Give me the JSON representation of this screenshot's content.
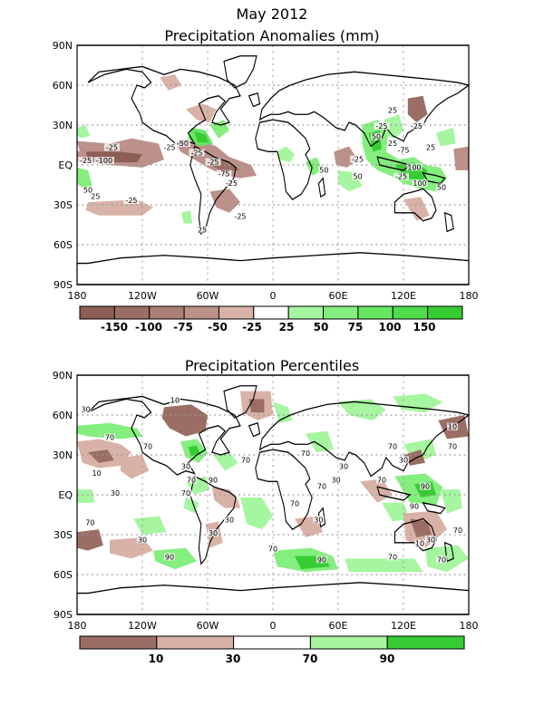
{
  "header": {
    "title": "May 2012"
  },
  "map_top": {
    "title": "Precipitation Anomalies (mm)",
    "lat_labels": [
      "90N",
      "60N",
      "30N",
      "EQ",
      "30S",
      "60S",
      "90S"
    ],
    "lon_labels": [
      "180",
      "120W",
      "60W",
      "0",
      "60E",
      "120E",
      "180"
    ],
    "colorbar": {
      "labels": [
        "-150",
        "-100",
        "-75",
        "-50",
        "-25",
        "25",
        "50",
        "75",
        "100",
        "150"
      ],
      "colors": [
        "#8c5e55",
        "#9b6e65",
        "#ab7f76",
        "#bb918a",
        "#d9b2a7",
        "#ffffff",
        "#a6f5a0",
        "#84ee7e",
        "#67e662",
        "#4edc4a",
        "#36cc33"
      ]
    },
    "contour_labels": [
      {
        "t": "-25",
        "lon": -148,
        "lat": 12
      },
      {
        "t": "-25",
        "lon": -172,
        "lat": 2
      },
      {
        "t": "-100",
        "lon": -155,
        "lat": 2
      },
      {
        "t": "-25",
        "lon": -95,
        "lat": 12
      },
      {
        "t": "-50",
        "lon": -83,
        "lat": 15
      },
      {
        "t": "-25",
        "lon": -70,
        "lat": 8
      },
      {
        "t": "-25",
        "lon": -55,
        "lat": 1
      },
      {
        "t": "-75",
        "lon": -45,
        "lat": -8
      },
      {
        "t": "-25",
        "lon": -38,
        "lat": -15
      },
      {
        "t": "50",
        "lon": -170,
        "lat": -20
      },
      {
        "t": "25",
        "lon": -163,
        "lat": -25
      },
      {
        "t": "-25",
        "lon": -130,
        "lat": -28
      },
      {
        "t": "-25",
        "lon": -30,
        "lat": -40
      },
      {
        "t": "25",
        "lon": -65,
        "lat": -50
      },
      {
        "t": "50",
        "lon": 95,
        "lat": 20
      },
      {
        "t": "-25",
        "lon": 100,
        "lat": 28
      },
      {
        "t": "25",
        "lon": 110,
        "lat": 15
      },
      {
        "t": "-75",
        "lon": 120,
        "lat": 10
      },
      {
        "t": "-25",
        "lon": 132,
        "lat": 28
      },
      {
        "t": "25",
        "lon": 145,
        "lat": 12
      },
      {
        "t": "-25",
        "lon": 118,
        "lat": -10
      },
      {
        "t": "-25",
        "lon": 78,
        "lat": 3
      },
      {
        "t": "100",
        "lon": 130,
        "lat": -3
      },
      {
        "t": "100",
        "lon": 135,
        "lat": -15
      },
      {
        "t": "50",
        "lon": 155,
        "lat": -18
      },
      {
        "t": "50",
        "lon": 78,
        "lat": -10
      },
      {
        "t": "25",
        "lon": 110,
        "lat": 40
      },
      {
        "t": "50",
        "lon": 47,
        "lat": -5
      }
    ]
  },
  "map_bottom": {
    "title": "Precipitation Percentiles",
    "lat_labels": [
      "90N",
      "60N",
      "30N",
      "EQ",
      "30S",
      "60S",
      "90S"
    ],
    "lon_labels": [
      "180",
      "120W",
      "60W",
      "0",
      "60E",
      "120E",
      "180"
    ],
    "colorbar": {
      "labels": [
        "10",
        "30",
        "70",
        "90"
      ],
      "colors": [
        "#9b6e65",
        "#d9b2a7",
        "#ffffff",
        "#a6f5a0",
        "#36cc33"
      ]
    },
    "contour_labels": [
      {
        "t": "30",
        "lon": -172,
        "lat": 63
      },
      {
        "t": "10",
        "lon": -90,
        "lat": 70
      },
      {
        "t": "70",
        "lon": -150,
        "lat": 42
      },
      {
        "t": "10",
        "lon": -162,
        "lat": 15
      },
      {
        "t": "30",
        "lon": -145,
        "lat": 0
      },
      {
        "t": "70",
        "lon": -115,
        "lat": 35
      },
      {
        "t": "30",
        "lon": -80,
        "lat": 20
      },
      {
        "t": "70",
        "lon": -75,
        "lat": 10
      },
      {
        "t": "90",
        "lon": -55,
        "lat": 10
      },
      {
        "t": "70",
        "lon": -80,
        "lat": 0
      },
      {
        "t": "70",
        "lon": -25,
        "lat": 25
      },
      {
        "t": "70",
        "lon": 30,
        "lat": 30
      },
      {
        "t": "30",
        "lon": 58,
        "lat": 10
      },
      {
        "t": "70",
        "lon": 45,
        "lat": 5
      },
      {
        "t": "30",
        "lon": 65,
        "lat": 20
      },
      {
        "t": "70",
        "lon": 100,
        "lat": 10
      },
      {
        "t": "90",
        "lon": 140,
        "lat": 5
      },
      {
        "t": "30",
        "lon": 120,
        "lat": 25
      },
      {
        "t": "70",
        "lon": 110,
        "lat": 35
      },
      {
        "t": "10",
        "lon": 165,
        "lat": 50
      },
      {
        "t": "70",
        "lon": 165,
        "lat": 35
      },
      {
        "t": "70",
        "lon": 20,
        "lat": -8
      },
      {
        "t": "30",
        "lon": 42,
        "lat": -20
      },
      {
        "t": "30",
        "lon": -40,
        "lat": -20
      },
      {
        "t": "70",
        "lon": -168,
        "lat": -22
      },
      {
        "t": "30",
        "lon": -120,
        "lat": -35
      },
      {
        "t": "90",
        "lon": -95,
        "lat": -48
      },
      {
        "t": "70",
        "lon": 0,
        "lat": -42
      },
      {
        "t": "90",
        "lon": 45,
        "lat": -50
      },
      {
        "t": "70",
        "lon": 110,
        "lat": -48
      },
      {
        "t": "10",
        "lon": 135,
        "lat": -38
      },
      {
        "t": "30",
        "lon": 145,
        "lat": -35
      },
      {
        "t": "70",
        "lon": 155,
        "lat": -50
      },
      {
        "t": "90",
        "lon": 130,
        "lat": -10
      },
      {
        "t": "70",
        "lon": 170,
        "lat": -28
      },
      {
        "t": "30",
        "lon": -55,
        "lat": -30
      }
    ]
  }
}
